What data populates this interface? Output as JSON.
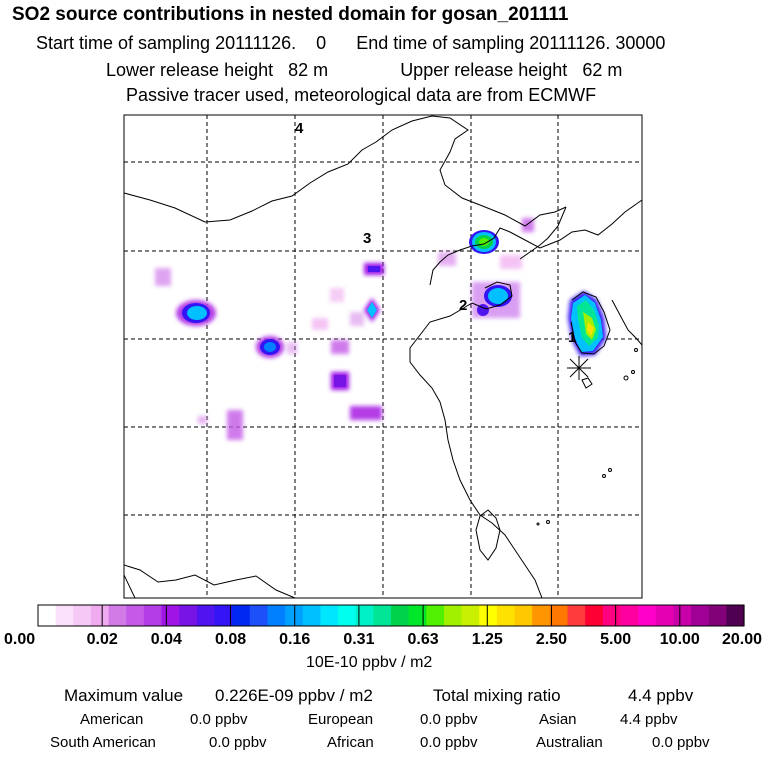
{
  "header": {
    "title": "SO2 source contributions in nested domain for gosan_201111",
    "start_label": "Start time of sampling 20111126.",
    "start_value": "0",
    "end_label": "End time of sampling 20111126. 30000",
    "lower_label": "Lower release height",
    "lower_value": "82 m",
    "upper_label": "Upper release height",
    "upper_value": "62 m",
    "tracer_note": "Passive tracer used, meteorological data are from ECMWF"
  },
  "map": {
    "region_labels": [
      "4",
      "3",
      "2",
      "1"
    ],
    "receptor_marker": "gosan-receptor-star"
  },
  "colorbar": {
    "tick_labels": [
      "0.00",
      "0.02",
      "0.04",
      "0.08",
      "0.16",
      "0.31",
      "0.63",
      "1.25",
      "2.50",
      "5.00",
      "10.00",
      "20.00"
    ],
    "segments": [
      "#ffffff",
      "#fbe0fb",
      "#f5c8f5",
      "#f0aaf0",
      "#d27ae6",
      "#c45ae6",
      "#b43ce6",
      "#a014e6",
      "#7814e6",
      "#5014f0",
      "#3214f5",
      "#0028f0",
      "#1e50fa",
      "#0080ff",
      "#00a0ff",
      "#00c0ff",
      "#00e6ff",
      "#00ffee",
      "#00f0c8",
      "#00e696",
      "#00d24b",
      "#00e628",
      "#50f000",
      "#a0f000",
      "#c8f000",
      "#ffff00",
      "#ffe100",
      "#ffc800",
      "#ff9600",
      "#ff7800",
      "#ff3c3c",
      "#ff0032",
      "#ff0080",
      "#ff00a0",
      "#ff00c8",
      "#e600b4",
      "#c800aa",
      "#a00096",
      "#820078",
      "#500050"
    ],
    "units": "10E-10 ppbv / m2"
  },
  "summary": {
    "max_label": "Maximum value",
    "max_value": "0.226E-09 ppbv / m2",
    "total_label": "Total mixing ratio",
    "total_value": "4.4 ppbv",
    "regions": [
      {
        "name": "American",
        "value": "0.0 ppbv"
      },
      {
        "name": "European",
        "value": "0.0 ppbv"
      },
      {
        "name": "Asian",
        "value": "4.4 ppbv"
      },
      {
        "name": "South American",
        "value": "0.0 ppbv"
      },
      {
        "name": "African",
        "value": "0.0 ppbv"
      },
      {
        "name": "Australian",
        "value": "0.0 ppbv"
      }
    ]
  }
}
